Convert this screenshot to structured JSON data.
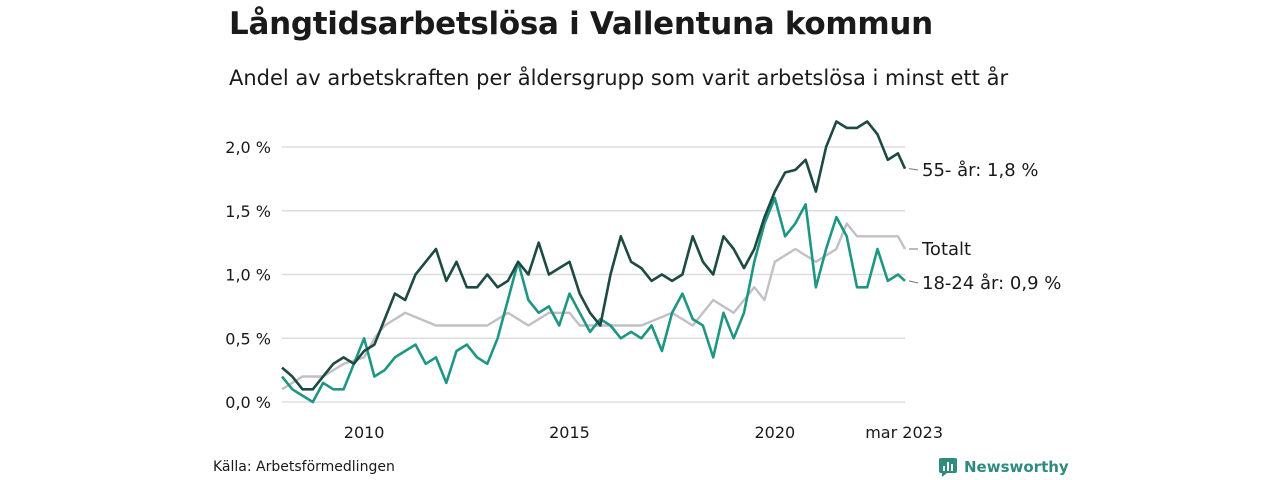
{
  "title": "Långtidsarbetslösa i Vallentuna kommun",
  "subtitle": "Andel av arbetskraften per åldersgrupp som varit arbetslösa i minst ett år",
  "source": "Källa: Arbetsförmedlingen",
  "brand": {
    "name": "Newsworthy",
    "icon": "newsworthy-logo-icon"
  },
  "colors": {
    "series_55": "#1d4a42",
    "series_total": "#c2bfc6",
    "series_18_24": "#1f9683",
    "grid": "#dddddd",
    "brand": "#2e8b7e"
  },
  "chart_data": {
    "type": "line",
    "title": "Långtidsarbetslösa i Vallentuna kommun",
    "subtitle": "Andel av arbetskraften per åldersgrupp som varit arbetslösa i minst ett år",
    "x_range": [
      2008.0,
      2023.17
    ],
    "ylim": [
      0,
      2.2
    ],
    "y_unit": "%",
    "grid": "horizontal",
    "y_ticks": [
      {
        "value": 0.0,
        "label": "0,0 %"
      },
      {
        "value": 0.5,
        "label": "0,5 %"
      },
      {
        "value": 1.0,
        "label": "1,0 %"
      },
      {
        "value": 1.5,
        "label": "1,5 %"
      },
      {
        "value": 2.0,
        "label": "2,0 %"
      }
    ],
    "x_ticks": [
      {
        "value": 2010,
        "label": "2010"
      },
      {
        "value": 2015,
        "label": "2015"
      },
      {
        "value": 2020,
        "label": "2020"
      },
      {
        "value": 2023.17,
        "label": "mar 2023"
      }
    ],
    "series": [
      {
        "name": "55- år",
        "end_label": "55- år: 1,8 %",
        "points": [
          [
            2008.0,
            0.27
          ],
          [
            2008.25,
            0.2
          ],
          [
            2008.5,
            0.1
          ],
          [
            2008.75,
            0.1
          ],
          [
            2009.0,
            0.2
          ],
          [
            2009.25,
            0.3
          ],
          [
            2009.5,
            0.35
          ],
          [
            2009.75,
            0.3
          ],
          [
            2010.0,
            0.4
          ],
          [
            2010.25,
            0.45
          ],
          [
            2010.5,
            0.65
          ],
          [
            2010.75,
            0.85
          ],
          [
            2011.0,
            0.8
          ],
          [
            2011.25,
            1.0
          ],
          [
            2011.5,
            1.1
          ],
          [
            2011.75,
            1.2
          ],
          [
            2012.0,
            0.95
          ],
          [
            2012.25,
            1.1
          ],
          [
            2012.5,
            0.9
          ],
          [
            2012.75,
            0.9
          ],
          [
            2013.0,
            1.0
          ],
          [
            2013.25,
            0.9
          ],
          [
            2013.5,
            0.95
          ],
          [
            2013.75,
            1.1
          ],
          [
            2014.0,
            1.0
          ],
          [
            2014.25,
            1.25
          ],
          [
            2014.5,
            1.0
          ],
          [
            2014.75,
            1.05
          ],
          [
            2015.0,
            1.1
          ],
          [
            2015.25,
            0.85
          ],
          [
            2015.5,
            0.7
          ],
          [
            2015.75,
            0.6
          ],
          [
            2016.0,
            1.0
          ],
          [
            2016.25,
            1.3
          ],
          [
            2016.5,
            1.1
          ],
          [
            2016.75,
            1.05
          ],
          [
            2017.0,
            0.95
          ],
          [
            2017.25,
            1.0
          ],
          [
            2017.5,
            0.95
          ],
          [
            2017.75,
            1.0
          ],
          [
            2018.0,
            1.3
          ],
          [
            2018.25,
            1.1
          ],
          [
            2018.5,
            1.0
          ],
          [
            2018.75,
            1.3
          ],
          [
            2019.0,
            1.2
          ],
          [
            2019.25,
            1.05
          ],
          [
            2019.5,
            1.2
          ],
          [
            2019.75,
            1.45
          ],
          [
            2020.0,
            1.65
          ],
          [
            2020.25,
            1.8
          ],
          [
            2020.5,
            1.82
          ],
          [
            2020.75,
            1.9
          ],
          [
            2021.0,
            1.65
          ],
          [
            2021.25,
            2.0
          ],
          [
            2021.5,
            2.2
          ],
          [
            2021.75,
            2.15
          ],
          [
            2022.0,
            2.15
          ],
          [
            2022.25,
            2.2
          ],
          [
            2022.5,
            2.1
          ],
          [
            2022.75,
            1.9
          ],
          [
            2023.0,
            1.95
          ],
          [
            2023.17,
            1.83
          ]
        ]
      },
      {
        "name": "Totalt",
        "end_label": "Totalt",
        "points": [
          [
            2008.0,
            0.1
          ],
          [
            2008.5,
            0.2
          ],
          [
            2009.0,
            0.2
          ],
          [
            2009.5,
            0.3
          ],
          [
            2010.0,
            0.35
          ],
          [
            2010.25,
            0.5
          ],
          [
            2010.5,
            0.6
          ],
          [
            2011.0,
            0.7
          ],
          [
            2011.75,
            0.6
          ],
          [
            2012.25,
            0.6
          ],
          [
            2012.75,
            0.6
          ],
          [
            2013.0,
            0.6
          ],
          [
            2013.5,
            0.7
          ],
          [
            2014.0,
            0.6
          ],
          [
            2014.5,
            0.7
          ],
          [
            2015.0,
            0.7
          ],
          [
            2015.25,
            0.6
          ],
          [
            2016.0,
            0.6
          ],
          [
            2016.75,
            0.6
          ],
          [
            2017.5,
            0.7
          ],
          [
            2018.0,
            0.6
          ],
          [
            2018.5,
            0.8
          ],
          [
            2019.0,
            0.7
          ],
          [
            2019.5,
            0.9
          ],
          [
            2019.75,
            0.8
          ],
          [
            2020.0,
            1.1
          ],
          [
            2020.5,
            1.2
          ],
          [
            2021.0,
            1.1
          ],
          [
            2021.5,
            1.2
          ],
          [
            2021.75,
            1.4
          ],
          [
            2022.0,
            1.3
          ],
          [
            2023.0,
            1.3
          ],
          [
            2023.17,
            1.2
          ]
        ]
      },
      {
        "name": "18-24 år",
        "end_label": "18-24 år: 0,9 %",
        "points": [
          [
            2008.0,
            0.2
          ],
          [
            2008.25,
            0.1
          ],
          [
            2008.5,
            0.05
          ],
          [
            2008.75,
            0.0
          ],
          [
            2009.0,
            0.15
          ],
          [
            2009.25,
            0.1
          ],
          [
            2009.5,
            0.1
          ],
          [
            2009.75,
            0.3
          ],
          [
            2010.0,
            0.5
          ],
          [
            2010.25,
            0.2
          ],
          [
            2010.5,
            0.25
          ],
          [
            2010.75,
            0.35
          ],
          [
            2011.0,
            0.4
          ],
          [
            2011.25,
            0.45
          ],
          [
            2011.5,
            0.3
          ],
          [
            2011.75,
            0.35
          ],
          [
            2012.0,
            0.15
          ],
          [
            2012.25,
            0.4
          ],
          [
            2012.5,
            0.45
          ],
          [
            2012.75,
            0.35
          ],
          [
            2013.0,
            0.3
          ],
          [
            2013.25,
            0.5
          ],
          [
            2013.5,
            0.8
          ],
          [
            2013.75,
            1.1
          ],
          [
            2014.0,
            0.8
          ],
          [
            2014.25,
            0.7
          ],
          [
            2014.5,
            0.75
          ],
          [
            2014.75,
            0.6
          ],
          [
            2015.0,
            0.85
          ],
          [
            2015.25,
            0.7
          ],
          [
            2015.5,
            0.55
          ],
          [
            2015.75,
            0.65
          ],
          [
            2016.0,
            0.6
          ],
          [
            2016.25,
            0.5
          ],
          [
            2016.5,
            0.55
          ],
          [
            2016.75,
            0.5
          ],
          [
            2017.0,
            0.6
          ],
          [
            2017.25,
            0.4
          ],
          [
            2017.5,
            0.7
          ],
          [
            2017.75,
            0.85
          ],
          [
            2018.0,
            0.65
          ],
          [
            2018.25,
            0.6
          ],
          [
            2018.5,
            0.35
          ],
          [
            2018.75,
            0.7
          ],
          [
            2019.0,
            0.5
          ],
          [
            2019.25,
            0.7
          ],
          [
            2019.5,
            1.1
          ],
          [
            2019.75,
            1.4
          ],
          [
            2020.0,
            1.6
          ],
          [
            2020.25,
            1.3
          ],
          [
            2020.5,
            1.4
          ],
          [
            2020.75,
            1.55
          ],
          [
            2021.0,
            0.9
          ],
          [
            2021.25,
            1.2
          ],
          [
            2021.5,
            1.45
          ],
          [
            2021.75,
            1.3
          ],
          [
            2022.0,
            0.9
          ],
          [
            2022.25,
            0.9
          ],
          [
            2022.5,
            1.2
          ],
          [
            2022.75,
            0.95
          ],
          [
            2023.0,
            1.0
          ],
          [
            2023.17,
            0.95
          ]
        ]
      }
    ]
  }
}
